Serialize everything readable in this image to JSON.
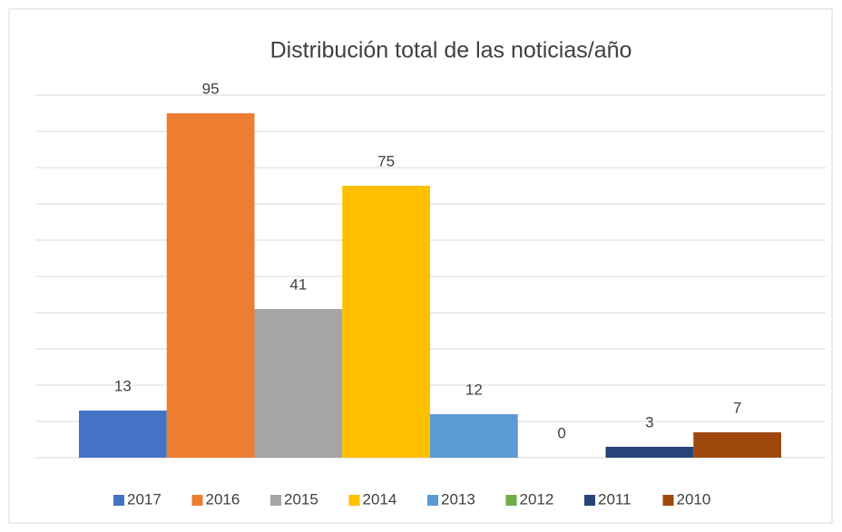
{
  "chart_data": {
    "type": "bar",
    "title": "Distribución total de las noticias/año",
    "series": [
      {
        "name": "2017",
        "color": "#4472c4",
        "values": [
          13
        ]
      },
      {
        "name": "2016",
        "color": "#ed7d31",
        "values": [
          95
        ]
      },
      {
        "name": "2015",
        "color": "#a5a5a5",
        "values": [
          41
        ]
      },
      {
        "name": "2014",
        "color": "#ffc000",
        "values": [
          75
        ]
      },
      {
        "name": "2013",
        "color": "#5b9bd5",
        "values": [
          12
        ]
      },
      {
        "name": "2012",
        "color": "#70ad47",
        "values": [
          0
        ]
      },
      {
        "name": "2011",
        "color": "#264478",
        "values": [
          3
        ]
      },
      {
        "name": "2010",
        "color": "#9e480e",
        "values": [
          7
        ]
      }
    ],
    "ylim": [
      0,
      100
    ],
    "yticks": [
      0,
      10,
      20,
      30,
      40,
      50,
      60,
      70,
      80,
      90,
      100
    ],
    "grid": true,
    "legend": "bottom"
  }
}
